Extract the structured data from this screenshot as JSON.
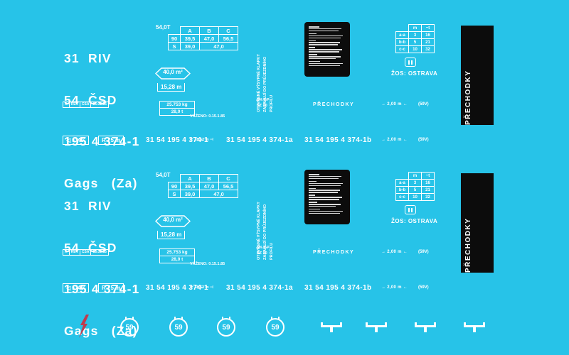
{
  "colors": {
    "background": "#27C3E8",
    "ink": "#FFFFFF",
    "panel": "#0C0C0C",
    "lightning_red": "#BE3B4F"
  },
  "section": {
    "id_lines": [
      "31  RIV",
      "54  ČSD",
      "195 4 374-1",
      "Gags   (Za)"
    ],
    "load_table": {
      "label": "54,0T",
      "headers": [
        "A",
        "B",
        "C"
      ],
      "rows": [
        [
          "90",
          "39,5",
          "47,0",
          "56,5"
        ],
        [
          "S",
          "39,0",
          "47,0"
        ]
      ]
    },
    "area_sign": "40,0 m²",
    "length_sign": "15,28 m",
    "tare_box": {
      "top": "25.753 kg",
      "bottom": "28,0 t"
    },
    "weighed_note": "VÁŽENO: 0.15.1.85",
    "overall_length_note": "⊢ 18,52 m ⊣",
    "revision_box": [
      "A",
      "REV",
      "ČSA",
      "16.02.85"
    ],
    "clearance_warning": [
      "OTEVŘENÉ VÝSYPNÉ KLAPKY",
      "ZASAHUJÍ DO PRŮJEZDNÍHO",
      "PROFILU"
    ],
    "code_note": [
      "DK-GP",
      "SZ 10"
    ],
    "prechodky_label": "PŘECHODKY",
    "support_table": {
      "headers": [
        "m",
        "~t"
      ],
      "rows": [
        [
          "a-a",
          "3",
          "16"
        ],
        [
          "b-b",
          "5",
          "21"
        ],
        [
          "c-c",
          "10",
          "32"
        ]
      ]
    },
    "zos_label": "ŽOS: OSTRAVA",
    "distance_sign": "→ 2,00 m ←",
    "voltage_note": "(59V)",
    "bar_label": "PŘECHODKY",
    "angle_sign": "◁ 1°40′",
    "radius_sign": "R 75 m",
    "wagon_numbers": [
      "31 54 195 4 374-1",
      "31 54 195 4 374-1a",
      "31 54 195 4 374-1b"
    ],
    "fine_print_illegible": true,
    "fine_print_paragraphs": [
      [
        28,
        88,
        80
      ],
      [
        22,
        92,
        86
      ],
      [
        20,
        85,
        78
      ],
      [
        18,
        90,
        82
      ],
      [
        24,
        86,
        74
      ],
      [
        30,
        92,
        84
      ]
    ]
  },
  "icons": {
    "circled_number": "59",
    "lightning": "high-voltage-warning",
    "jack": "lifting-jacking-point"
  }
}
